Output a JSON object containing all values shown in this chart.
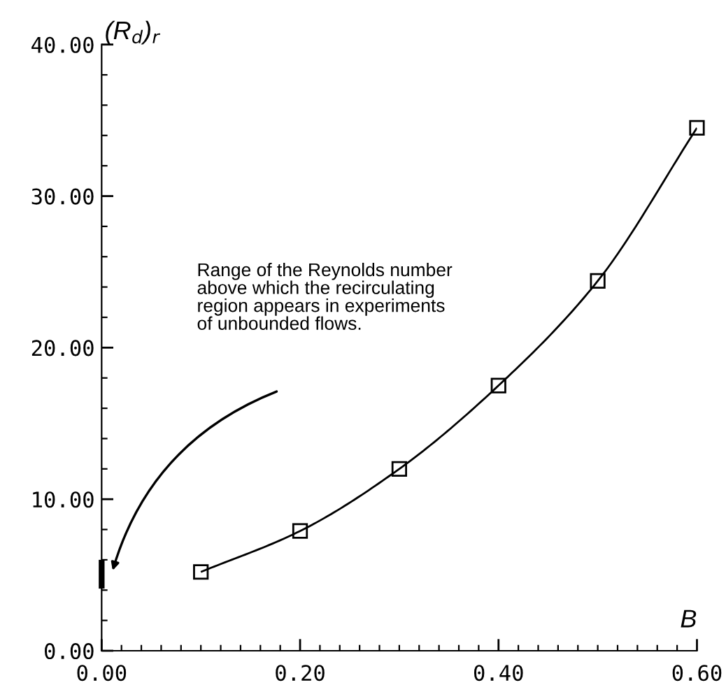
{
  "chart_data": {
    "type": "line",
    "xlabel": "B",
    "ylabel": "(R$_{d}$)$_{r}$",
    "x": [
      0.1,
      0.2,
      0.3,
      0.4,
      0.5,
      0.6
    ],
    "series": [
      {
        "color": "#000000",
        "values": [
          5.2,
          7.9,
          12.0,
          17.5,
          24.4,
          34.5
        ]
      },
      {
        "type": "line",
        "color": "#000000",
        "x": [
          0,
          0
        ],
        "values": [
          4.1,
          6.0
        ],
        "marker": "none"
      }
    ],
    "marker": "square",
    "line_style": "solid",
    "xlim": [
      0,
      0.6
    ],
    "ylim": [
      0,
      40
    ],
    "xticks": [
      {
        "value": 0,
        "label": "0.00"
      },
      {
        "value": 0.2,
        "label": "0.20"
      },
      {
        "value": 0.4,
        "label": "0.40"
      },
      {
        "value": 0.6,
        "label": "0.60"
      }
    ],
    "yticks": [
      {
        "value": 0,
        "label": "0.00"
      },
      {
        "value": 10,
        "label": "10.00"
      },
      {
        "value": 20,
        "label": "20.00"
      },
      {
        "value": 30,
        "label": "30.00"
      },
      {
        "value": 40,
        "label": "40.00"
      }
    ],
    "annotations": [
      "Range of the Reynolds number\nabove which the recirculating\nregion appears in experiments\nof unbounded flows."
    ],
    "grid": false,
    "legend": false
  }
}
